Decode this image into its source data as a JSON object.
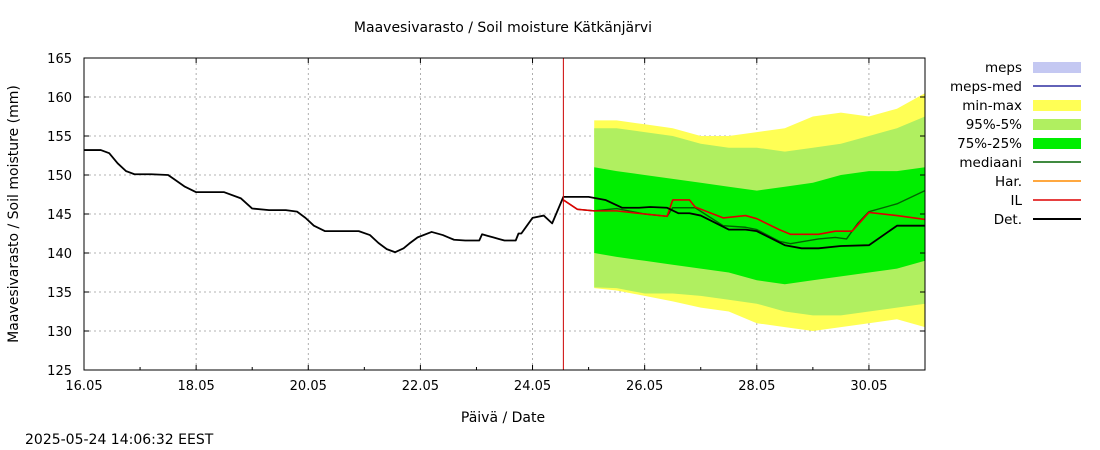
{
  "chart_data": {
    "type": "line",
    "title": "Maavesivarasto / Soil moisture   Kätkänjärvi",
    "xlabel": "Päivä / Date",
    "ylabel": "Maavesivarasto / Soil moisture (mm)",
    "xlim": [
      0,
      15
    ],
    "ylim": [
      125,
      165
    ],
    "x_tick_labels": [
      "16.05",
      "18.05",
      "20.05",
      "22.05",
      "24.05",
      "26.05",
      "28.05",
      "30.05"
    ],
    "y_ticks": [
      125,
      130,
      135,
      140,
      145,
      150,
      155,
      160,
      165
    ],
    "grid": true,
    "legend_position": "right",
    "forecast_start": 8.55,
    "colors": {
      "meps": "#c4c8f2",
      "meps-med": "#2f2fa0",
      "min-max": "#ffff55",
      "95%-5%": "#b0ef60",
      "75%-25%": "#00ee00",
      "mediaani": "#006400",
      "Har.": "#ff8c00",
      "IL": "#dd0000",
      "Det.": "#000000",
      "vline": "#cc0000"
    },
    "legend": [
      "meps",
      "meps-med",
      "min-max",
      "95%-5%",
      "75%-25%",
      "mediaani",
      "Har.",
      "IL",
      "Det."
    ],
    "series": [
      {
        "name": "Det.",
        "x": [
          0,
          0.3,
          0.45,
          0.6,
          0.75,
          0.9,
          1.2,
          1.5,
          1.6,
          1.8,
          2.0,
          2.2,
          2.5,
          2.8,
          3.0,
          3.3,
          3.6,
          3.8,
          3.95,
          4.1,
          4.3,
          4.4,
          4.6,
          4.9,
          5.1,
          5.25,
          5.4,
          5.55,
          5.7,
          5.8,
          5.95,
          6.2,
          6.4,
          6.5,
          6.6,
          6.8,
          7.05,
          7.1,
          7.2,
          7.3,
          7.4,
          7.5,
          7.6,
          7.7,
          7.75,
          7.8,
          7.9,
          8.0,
          8.2,
          8.35,
          8.55,
          8.75,
          9.0,
          9.3,
          9.6,
          9.9,
          10.1,
          10.4,
          10.6,
          10.8,
          11.0,
          11.5,
          11.8,
          12.0,
          12.5,
          12.8,
          13.0,
          13.1,
          13.5,
          14.0,
          14.5,
          15.0
        ],
        "y": [
          153.2,
          153.2,
          152.8,
          151.5,
          150.5,
          150.1,
          150.1,
          150.0,
          149.5,
          148.5,
          147.8,
          147.8,
          147.8,
          147.0,
          145.7,
          145.5,
          145.5,
          145.3,
          144.5,
          143.5,
          142.8,
          142.8,
          142.8,
          142.8,
          142.3,
          141.3,
          140.5,
          140.1,
          140.6,
          141.2,
          142.0,
          142.7,
          142.3,
          142.0,
          141.7,
          141.6,
          141.6,
          142.4,
          142.2,
          142.0,
          141.8,
          141.6,
          141.6,
          141.6,
          142.5,
          142.5,
          143.5,
          144.5,
          144.8,
          143.8,
          147.2,
          147.2,
          147.2,
          146.8,
          145.8,
          145.8,
          145.9,
          145.8,
          145.1,
          145.1,
          144.8,
          143.0,
          143.0,
          142.8,
          141.0,
          140.6,
          140.6,
          140.6,
          140.9,
          141.0,
          143.5,
          143.5
        ]
      },
      {
        "name": "IL",
        "x": [
          8.55,
          8.8,
          9.1,
          9.5,
          10.0,
          10.4,
          10.5,
          10.8,
          10.9,
          11.4,
          11.8,
          12.0,
          12.4,
          12.6,
          13.1,
          13.4,
          13.7,
          14.0,
          14.5,
          15.0
        ],
        "y": [
          146.8,
          145.6,
          145.4,
          145.4,
          145.0,
          144.7,
          146.8,
          146.8,
          145.9,
          144.5,
          144.8,
          144.4,
          143.0,
          142.4,
          142.4,
          142.8,
          142.8,
          145.2,
          144.8,
          144.3
        ]
      },
      {
        "name": "mediaani",
        "x": [
          8.55,
          8.8,
          9.1,
          9.5,
          10.0,
          10.4,
          10.5,
          10.9,
          11.4,
          11.8,
          12.0,
          12.4,
          12.6,
          13.1,
          13.4,
          13.6,
          13.8,
          14.0,
          14.5,
          15.0
        ],
        "y": [
          146.8,
          145.6,
          145.4,
          145.7,
          145.0,
          144.7,
          145.8,
          145.8,
          143.5,
          143.3,
          143.0,
          141.5,
          141.2,
          141.8,
          142.0,
          141.8,
          143.8,
          145.3,
          146.3,
          148.0
        ]
      }
    ],
    "bands": [
      {
        "name": "min-max",
        "x": [
          9.1,
          9.5,
          10.0,
          10.5,
          11.0,
          11.5,
          12.0,
          12.5,
          13.0,
          13.5,
          14.0,
          14.5,
          15.0
        ],
        "low": [
          135.5,
          135.2,
          134.5,
          133.8,
          133.0,
          132.5,
          131.0,
          130.5,
          130.0,
          130.5,
          131.0,
          131.5,
          130.5
        ],
        "high": [
          157.0,
          157.0,
          156.5,
          156.0,
          155.0,
          155.0,
          155.5,
          156.0,
          157.5,
          158.0,
          157.5,
          158.5,
          160.5
        ]
      },
      {
        "name": "95%-5%",
        "x": [
          9.1,
          9.5,
          10.0,
          10.5,
          11.0,
          11.5,
          12.0,
          12.5,
          13.0,
          13.5,
          14.0,
          14.5,
          15.0
        ],
        "low": [
          135.6,
          135.5,
          134.8,
          134.8,
          134.5,
          134.0,
          133.5,
          132.5,
          132.0,
          132.0,
          132.5,
          133.0,
          133.5
        ],
        "high": [
          156.0,
          156.0,
          155.5,
          155.0,
          154.0,
          153.5,
          153.5,
          153.0,
          153.5,
          154.0,
          155.0,
          156.0,
          157.5
        ]
      },
      {
        "name": "75%-25%",
        "x": [
          9.1,
          9.5,
          10.0,
          10.5,
          11.0,
          11.5,
          12.0,
          12.5,
          13.0,
          13.5,
          14.0,
          14.5,
          15.0
        ],
        "low": [
          140.0,
          139.5,
          139.0,
          138.5,
          138.0,
          137.5,
          136.5,
          136.0,
          136.5,
          137.0,
          137.5,
          138.0,
          139.0
        ],
        "high": [
          151.0,
          150.5,
          150.0,
          149.5,
          149.0,
          148.5,
          148.0,
          148.5,
          149.0,
          150.0,
          150.5,
          150.5,
          151.0
        ]
      }
    ]
  },
  "timestamp": "2025-05-24 14:06:32 EEST"
}
